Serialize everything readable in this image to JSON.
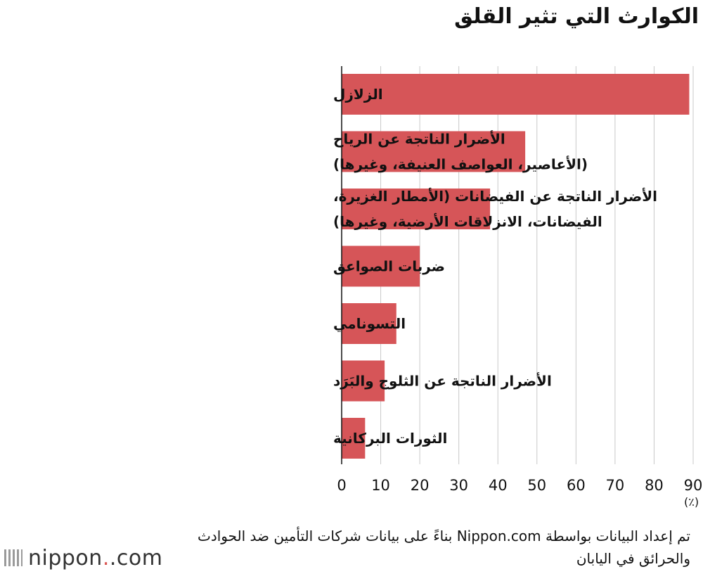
{
  "chart_data": {
    "type": "bar",
    "orientation": "horizontal",
    "title": "الكوارث التي تثير القلق",
    "categories": [
      [
        "الزلازل"
      ],
      [
        "الأضرار الناتجة عن الرياح",
        "(الأعاصير، العواصف العنيفة، وغيرها)"
      ],
      [
        "الأضرار الناتجة عن الفيضانات (الأمطار الغزيرة،",
        "الفيضانات، الانزلاقات الأرضية، وغيرها)"
      ],
      [
        "ضربات الصواعق"
      ],
      [
        "التسونامي"
      ],
      [
        "الأضرار الناتجة عن الثلوج والبَرَد"
      ],
      [
        "الثورات البركانية"
      ]
    ],
    "values": [
      89,
      47,
      38,
      20,
      14,
      11,
      6
    ],
    "xlim": [
      0,
      90
    ],
    "xticks": [
      "0",
      "10",
      "20",
      "30",
      "40",
      "50",
      "60",
      "70",
      "80",
      "90"
    ],
    "xlabel": "(٪)",
    "bar_color": "#d65558",
    "grid": true
  },
  "source": "تم إعداد البيانات بواسطة Nippon.com بناءً على بيانات شركات التأمين ضد الحوادث والحرائق في اليابان",
  "logo": {
    "name": "nippon",
    "suffix": ".com"
  }
}
